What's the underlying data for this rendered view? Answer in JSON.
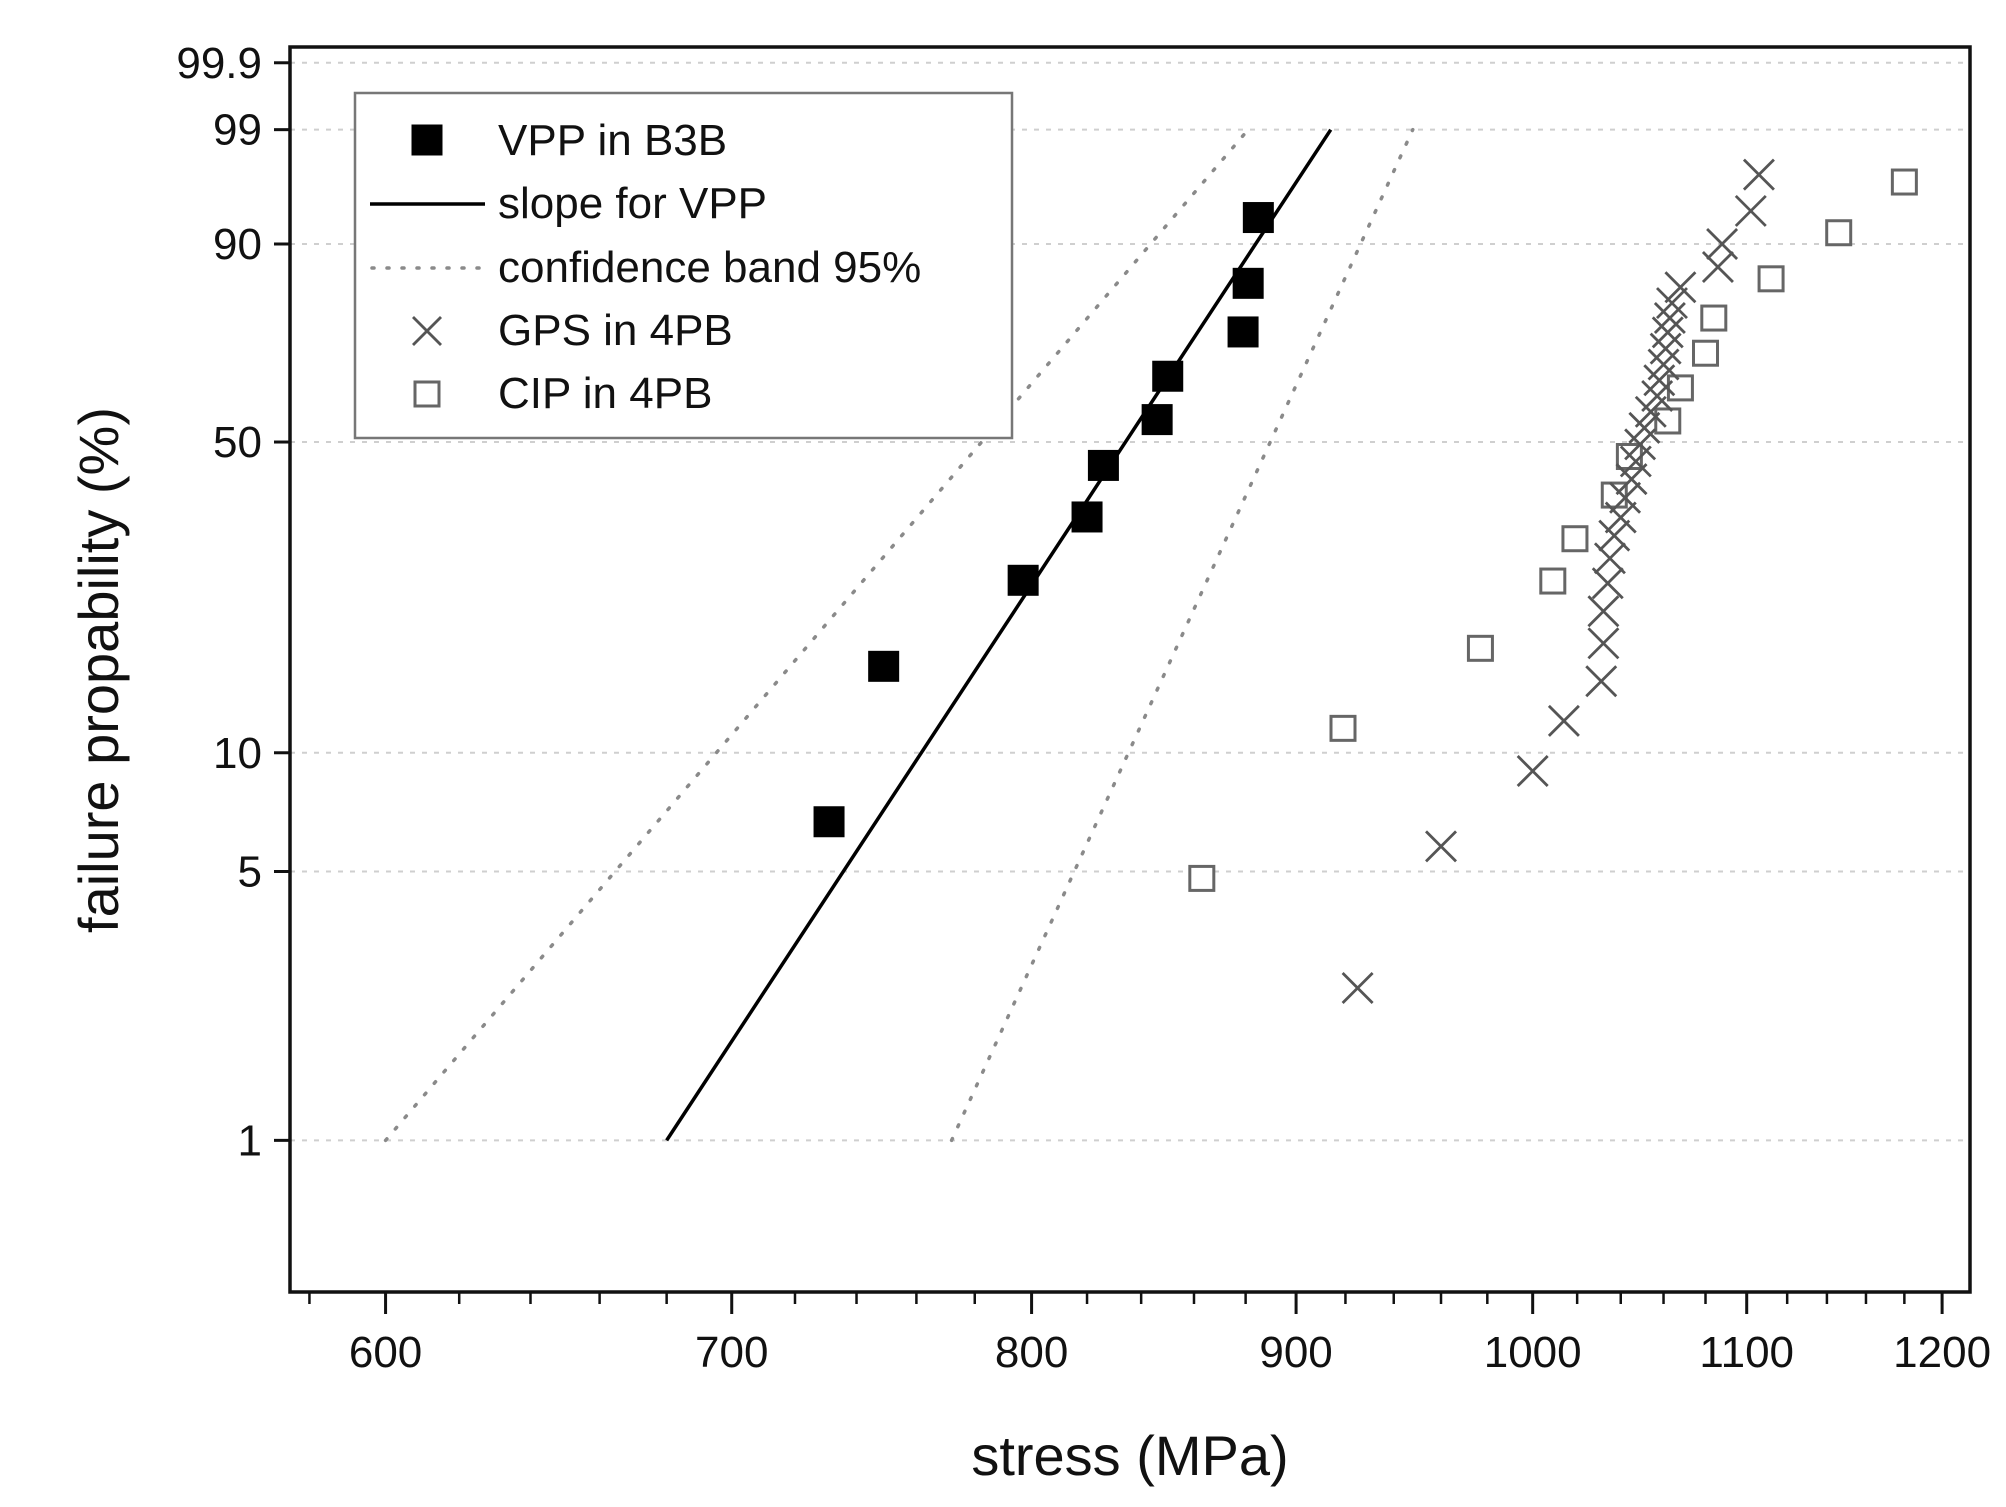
{
  "chart_data": {
    "type": "scatter",
    "xlabel": "stress (MPa)",
    "ylabel": "failure propability (%)",
    "x_scale": "log",
    "xlim": [
      575,
      1215
    ],
    "x_ticks": [
      600,
      700,
      800,
      900,
      1000,
      1100,
      1200
    ],
    "x_minor_ticks": [
      580,
      620,
      640,
      660,
      680,
      720,
      740,
      760,
      780,
      820,
      840,
      860,
      880,
      920,
      940,
      960,
      980,
      1020,
      1040,
      1060,
      1080,
      1120,
      1140,
      1160,
      1180,
      1200
    ],
    "y_scale": "weibull",
    "ylim": [
      0.4,
      99.95
    ],
    "y_ticks": [
      1,
      5,
      10,
      50,
      90,
      99,
      99.9
    ],
    "y_tick_labels": [
      "1",
      "5",
      "10",
      "50",
      "90",
      "99",
      "99.9"
    ],
    "grid": "horizontal dotted at y ticks",
    "legend_position": "top-left",
    "colors": {
      "vpp": "#000000",
      "line": "#000000",
      "band": "#8a8a8a",
      "gps": "#555555",
      "cip": "#666666",
      "grid": "#cfcfcf"
    },
    "series": [
      {
        "name": "VPP in B3B",
        "marker": "filled-square",
        "x": [
          731,
          749,
          797,
          820,
          826,
          846,
          850,
          879,
          881,
          885
        ],
        "y": [
          6.7,
          16.3,
          25.9,
          35.6,
          45.2,
          54.8,
          64.4,
          74.1,
          83.7,
          93.3
        ]
      },
      {
        "name": "slope for VPP",
        "style": "solid-line",
        "x": [
          680,
          914
        ],
        "y": [
          1,
          99
        ]
      },
      {
        "name": "confidence band 95%",
        "style": "dotted-line",
        "lines": [
          {
            "x": [
              600,
              881
            ],
            "y": [
              1,
              99
            ]
          },
          {
            "x": [
              772,
              948
            ],
            "y": [
              1,
              99
            ]
          }
        ]
      },
      {
        "name": "GPS in 4PB",
        "marker": "x",
        "x": [
          925,
          960,
          1000,
          1014,
          1031,
          1032,
          1032,
          1034,
          1035,
          1037,
          1040,
          1042,
          1045,
          1047,
          1049,
          1051,
          1054,
          1057,
          1058,
          1060,
          1061,
          1062,
          1063,
          1064,
          1068,
          1086,
          1088,
          1102,
          1106
        ],
        "y": [
          2.5,
          5.8,
          9,
          12,
          15,
          18.5,
          22,
          25.5,
          29,
          32.5,
          35.5,
          39,
          42.5,
          46,
          49.5,
          53,
          56.5,
          60,
          63.5,
          67,
          70.5,
          74,
          77,
          80,
          83,
          86.5,
          90,
          94,
          97
        ]
      },
      {
        "name": "CIP in 4PB",
        "marker": "open-square",
        "x": [
          863,
          919,
          977,
          1009,
          1019,
          1037,
          1044,
          1062,
          1068,
          1080,
          1084,
          1112,
          1146,
          1180
        ],
        "y": [
          4.8,
          11.5,
          18,
          25.8,
          32,
          39.5,
          47,
          54.5,
          61.8,
          69.5,
          77,
          84.5,
          91.5,
          96.5
        ]
      }
    ]
  }
}
